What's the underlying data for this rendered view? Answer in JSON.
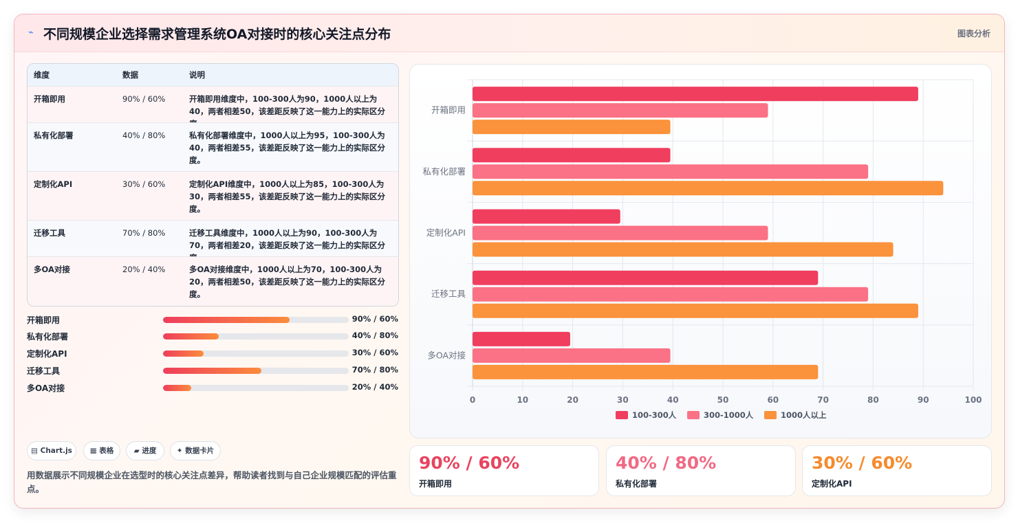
{
  "header": {
    "icon": "chart-icon",
    "title": "不同规模企业选择需求管理系统OA对接时的核心关注点分布",
    "tag": "图表分析"
  },
  "table": {
    "headers": [
      "维度",
      "数据",
      "说明"
    ],
    "rows": [
      {
        "dim": "开箱即用",
        "data": "90% / 60%",
        "desc": "开箱即用维度中，100-300人为90，1000人以上为40，两者相差50，该差距反映了这一能力上的实际区分度。"
      },
      {
        "dim": "私有化部署",
        "data": "40% / 80%",
        "desc": "私有化部署维度中，1000人以上为95，100-300人为40，两者相差55，该差距反映了这一能力上的实际区分度。"
      },
      {
        "dim": "定制化API",
        "data": "30% / 60%",
        "desc": "定制化API维度中，1000人以上为85，100-300人为30，两者相差55，该差距反映了这一能力上的实际区分度。"
      },
      {
        "dim": "迁移工具",
        "data": "70% / 80%",
        "desc": "迁移工具维度中，1000人以上为90，100-300人为70，两者相差20，该差距反映了这一能力上的实际区分度。"
      },
      {
        "dim": "多OA对接",
        "data": "20% / 40%",
        "desc": "多OA对接维度中，1000人以上为70，100-300人为20，两者相差50，该差距反映了这一能力上的实际区分度。"
      }
    ]
  },
  "progress": [
    {
      "label": "开箱即用",
      "value": "90% / 60%",
      "fraction": 0.68
    },
    {
      "label": "私有化部署",
      "value": "40% / 80%",
      "fraction": 0.3
    },
    {
      "label": "定制化API",
      "value": "30% / 60%",
      "fraction": 0.22
    },
    {
      "label": "迁移工具",
      "value": "70% / 80%",
      "fraction": 0.53
    },
    {
      "label": "多OA对接",
      "value": "20% / 40%",
      "fraction": 0.15
    }
  ],
  "chips": [
    {
      "icon": "bar-chart-icon",
      "label": "▤ Chart.js"
    },
    {
      "icon": "table-icon",
      "label": "▦ 表格"
    },
    {
      "icon": "progress-icon",
      "label": "▰ 进度"
    },
    {
      "icon": "sparkle-icon",
      "label": "✦ 数据卡片"
    }
  ],
  "description": "用数据展示不同规模企业在选型时的核心关注点差异，帮助读者找到与自己企业规模匹配的评估重点。",
  "stats": [
    {
      "value": "90% / 60%",
      "label": "开箱即用",
      "color": "#e8445f"
    },
    {
      "value": "40% / 80%",
      "label": "私有化部署",
      "color": "#f06a84"
    },
    {
      "value": "30% / 60%",
      "label": "定制化API",
      "color": "#f58b2e"
    }
  ],
  "chart_data": {
    "type": "bar",
    "orientation": "horizontal",
    "categories": [
      "开箱即用",
      "私有化部署",
      "定制化API",
      "迁移工具",
      "多OA对接"
    ],
    "series": [
      {
        "name": "100-300人",
        "values": [
          89,
          39.5,
          29.5,
          69,
          19.5
        ],
        "color": "#f03e5f"
      },
      {
        "name": "300-1000人",
        "values": [
          59,
          79,
          59,
          79,
          39.5
        ],
        "color": "#fb7185"
      },
      {
        "name": "1000人以上",
        "values": [
          39.5,
          94,
          84,
          89,
          69
        ],
        "color": "#fb923c"
      }
    ],
    "xlim": [
      0,
      100
    ],
    "xticks": [
      "0",
      "10",
      "20",
      "30",
      "40",
      "50",
      "60",
      "70",
      "80",
      "90",
      "100"
    ],
    "grid": true,
    "legend": "bottom"
  }
}
